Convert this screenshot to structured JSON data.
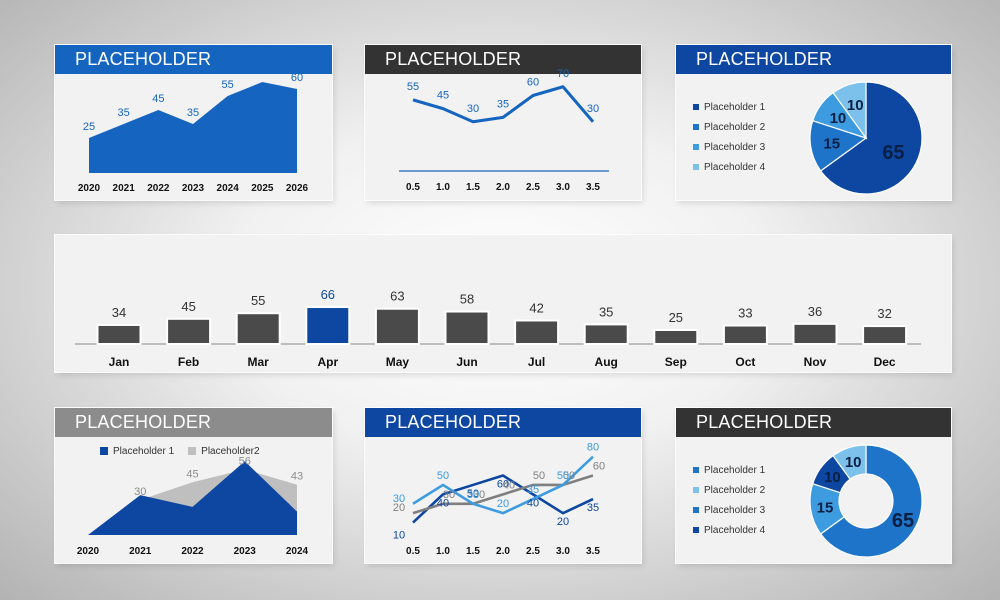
{
  "colors": {
    "blue_bright": "#1565c0",
    "blue_dark": "#0d47a1",
    "blue_mid": "#1e74c8",
    "blue_sky": "#3d9be0",
    "blue_light": "#7cc0ec",
    "gray_dark": "#4a4a4a",
    "gray_mid": "#bfbfbf",
    "header_black": "#333333",
    "header_gray": "#8c8c8c"
  },
  "panels": {
    "p1": {
      "title": "PLACEHOLDER"
    },
    "p2": {
      "title": "PLACEHOLDER"
    },
    "p3": {
      "title": "PLACEHOLDER"
    },
    "p4": {
      "title": "PLACEHOLDER"
    },
    "p5": {
      "title": "PLACEHOLDER"
    },
    "p6": {
      "title": "PLACEHOLDER"
    }
  },
  "legends": {
    "p3": [
      "Placeholder 1",
      "Placeholder 2",
      "Placeholder 3",
      "Placeholder 4"
    ],
    "p4": [
      "Placeholder 1",
      "Placeholder2"
    ],
    "p6": [
      "Placeholder 1",
      "Placeholder 2",
      "Placeholder 3",
      "Placeholder 4"
    ]
  },
  "chart_data": [
    {
      "id": "area1",
      "type": "area",
      "categories": [
        "2020",
        "2021",
        "2022",
        "2023",
        "2024",
        "2025",
        "2026"
      ],
      "values": [
        25,
        35,
        45,
        35,
        55,
        65,
        60
      ],
      "ylim": [
        0,
        70
      ],
      "color": "#1565c0"
    },
    {
      "id": "line1",
      "type": "line",
      "categories": [
        "0.5",
        "1.0",
        "1.5",
        "2.0",
        "2.5",
        "3.0",
        "3.5"
      ],
      "values": [
        55,
        45,
        30,
        35,
        60,
        70,
        30
      ],
      "ylim": [
        0,
        80
      ],
      "color": "#1565c0"
    },
    {
      "id": "pie1",
      "type": "pie",
      "labels": [
        "Placeholder 1",
        "Placeholder 2",
        "Placeholder 3",
        "Placeholder 4"
      ],
      "values": [
        65,
        15,
        10,
        10
      ],
      "colors": [
        "#0d47a1",
        "#1e74c8",
        "#3d9be0",
        "#7cc0ec"
      ]
    },
    {
      "id": "bar1",
      "type": "bar",
      "categories": [
        "Jan",
        "Feb",
        "Mar",
        "Apr",
        "May",
        "Jun",
        "Jul",
        "Aug",
        "Sep",
        "Oct",
        "Nov",
        "Dec"
      ],
      "values": [
        34,
        45,
        55,
        66,
        63,
        58,
        42,
        35,
        25,
        33,
        36,
        32
      ],
      "ylim": [
        0,
        80
      ],
      "highlight": "Apr"
    },
    {
      "id": "area2",
      "type": "area",
      "categories": [
        "2020",
        "2021",
        "2022",
        "2023",
        "2024"
      ],
      "series": [
        {
          "name": "Placeholder 1",
          "values": [
            0,
            34,
            24,
            63,
            20
          ],
          "color": "#0d47a1"
        },
        {
          "name": "Placeholder2",
          "values": [
            0,
            30,
            45,
            56,
            43
          ],
          "color": "#bfbfbf"
        }
      ],
      "ylim": [
        0,
        70
      ]
    },
    {
      "id": "lines2",
      "type": "line",
      "categories": [
        "0.5",
        "1.0",
        "1.5",
        "2.0",
        "2.5",
        "3.0",
        "3.5"
      ],
      "series": [
        {
          "values": [
            10,
            40,
            50,
            60,
            40,
            20,
            35
          ],
          "color": "#0d47a1"
        },
        {
          "values": [
            20,
            30,
            30,
            40,
            50,
            50,
            60
          ],
          "color": "#7f7f7f"
        },
        {
          "values": [
            30,
            50,
            30,
            20,
            35,
            50,
            80
          ],
          "color": "#3d9be0"
        }
      ],
      "ylim": [
        0,
        85
      ]
    },
    {
      "id": "donut1",
      "type": "pie",
      "donut": true,
      "labels": [
        "Placeholder 1",
        "Placeholder 2",
        "Placeholder 3",
        "Placeholder 4"
      ],
      "values": [
        65,
        15,
        10,
        10
      ],
      "colors": [
        "#1e74c8",
        "#3d9be0",
        "#0d47a1",
        "#7cc0ec"
      ]
    }
  ]
}
